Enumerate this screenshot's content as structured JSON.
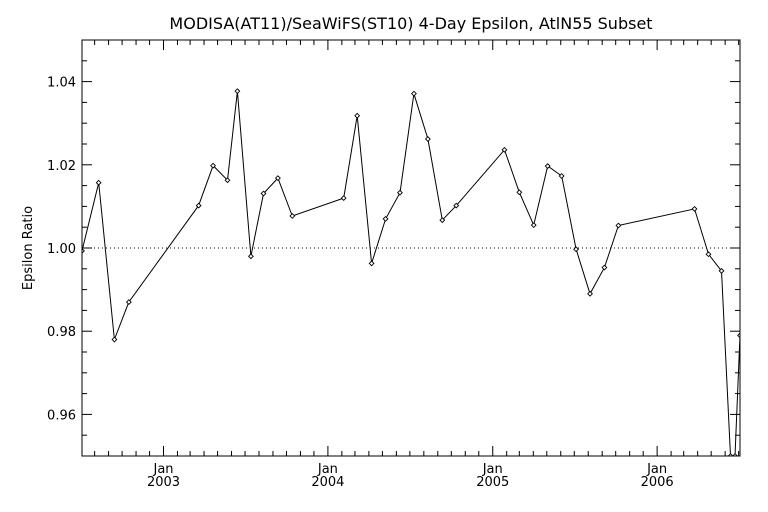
{
  "chart_data": {
    "type": "line",
    "title": "MODISA(AT11)/SeaWiFS(ST10) 4-Day Epsilon, AtlN55 Subset",
    "xlabel": "",
    "ylabel": "Epsilon Ratio",
    "xlim": [
      "2002-07-04",
      "2006-07-04"
    ],
    "ylim": [
      0.95,
      1.05
    ],
    "yticks": [
      0.96,
      0.98,
      1.0,
      1.02,
      1.04
    ],
    "ytick_labels": [
      "0.96",
      "0.98",
      "1.00",
      "1.02",
      "1.04"
    ],
    "xticks": [
      {
        "date": "2003-01-01",
        "month": "Jan",
        "year": "2003"
      },
      {
        "date": "2004-01-01",
        "month": "Jan",
        "year": "2004"
      },
      {
        "date": "2005-01-01",
        "month": "Jan",
        "year": "2005"
      },
      {
        "date": "2006-01-01",
        "month": "Jan",
        "year": "2006"
      }
    ],
    "reference_line": {
      "y": 1.0,
      "style": "dotted"
    },
    "grid": false,
    "series": [
      {
        "x": [
          "2002-07-04",
          "2002-08-10",
          "2002-09-14",
          "2002-10-16",
          "2003-03-20",
          "2003-04-21",
          "2003-05-23",
          "2003-06-14",
          "2003-07-14",
          "2003-08-11",
          "2003-09-12",
          "2003-10-14",
          "2004-02-05",
          "2004-03-06",
          "2004-04-07",
          "2004-05-08",
          "2004-06-09",
          "2004-07-10",
          "2004-08-10",
          "2004-09-11",
          "2004-10-12",
          "2005-01-27",
          "2005-03-01",
          "2005-04-02",
          "2005-05-03",
          "2005-06-03",
          "2005-07-05",
          "2005-08-05",
          "2005-09-06",
          "2005-10-07",
          "2006-03-25",
          "2006-04-25",
          "2006-05-24",
          "2006-06-13",
          "2006-06-23",
          "2006-07-04"
        ],
        "y": [
          0.9993,
          1.0157,
          0.978,
          0.987,
          1.0102,
          1.0198,
          1.0163,
          1.0377,
          0.998,
          1.0131,
          1.0168,
          1.0077,
          1.012,
          1.0318,
          0.9963,
          1.007,
          1.0133,
          1.0371,
          1.0262,
          1.0067,
          1.0102,
          1.0236,
          1.0134,
          1.0055,
          1.0197,
          1.0173,
          0.9997,
          0.989,
          0.9953,
          1.0054,
          1.0094,
          0.9985,
          0.9945,
          0.95,
          0.95,
          0.979
        ]
      }
    ]
  }
}
